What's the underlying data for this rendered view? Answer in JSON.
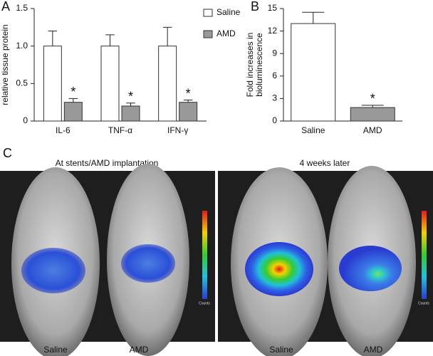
{
  "chart_data": [
    {
      "type": "bar",
      "panel": "A",
      "ylabel": "relative tissue protein",
      "categories": [
        "IL-6",
        "TNF-α",
        "IFN-γ"
      ],
      "series": [
        {
          "name": "Saline",
          "color": "#ffffff",
          "values": [
            1.0,
            1.0,
            1.0
          ],
          "errors": [
            0.2,
            0.15,
            0.25
          ]
        },
        {
          "name": "AMD",
          "color": "#999999",
          "values": [
            0.25,
            0.2,
            0.25
          ],
          "errors": [
            0.05,
            0.04,
            0.03
          ]
        }
      ],
      "annotations": [
        "*",
        "*",
        "*"
      ],
      "ylim": [
        0,
        1.5
      ],
      "yticks": [
        0,
        0.5,
        {
          "value": 1,
          "label": "1.0"
        },
        1.5
      ],
      "legend": "upper right"
    },
    {
      "type": "bar",
      "panel": "B",
      "ylabel": [
        "Fold increases in",
        "bioluminescence"
      ],
      "categories": [
        "Saline",
        "AMD"
      ],
      "values": [
        13,
        1.8
      ],
      "errors": [
        1.5,
        0.3
      ],
      "colors": [
        "#ffffff",
        "#999999"
      ],
      "annotations": [
        null,
        "*"
      ],
      "ylim": [
        0,
        15
      ],
      "yticks": [
        0,
        3,
        6,
        9,
        12,
        15
      ]
    }
  ],
  "panel_c": {
    "label": "C",
    "images": [
      {
        "title": "At stents/AMD implantation",
        "subjects": [
          "Saline",
          "AMD"
        ],
        "scale_label": "Counts"
      },
      {
        "title": "4 weeks later",
        "subjects": [
          "Saline",
          "AMD"
        ],
        "scale_label": "Counts"
      }
    ]
  }
}
